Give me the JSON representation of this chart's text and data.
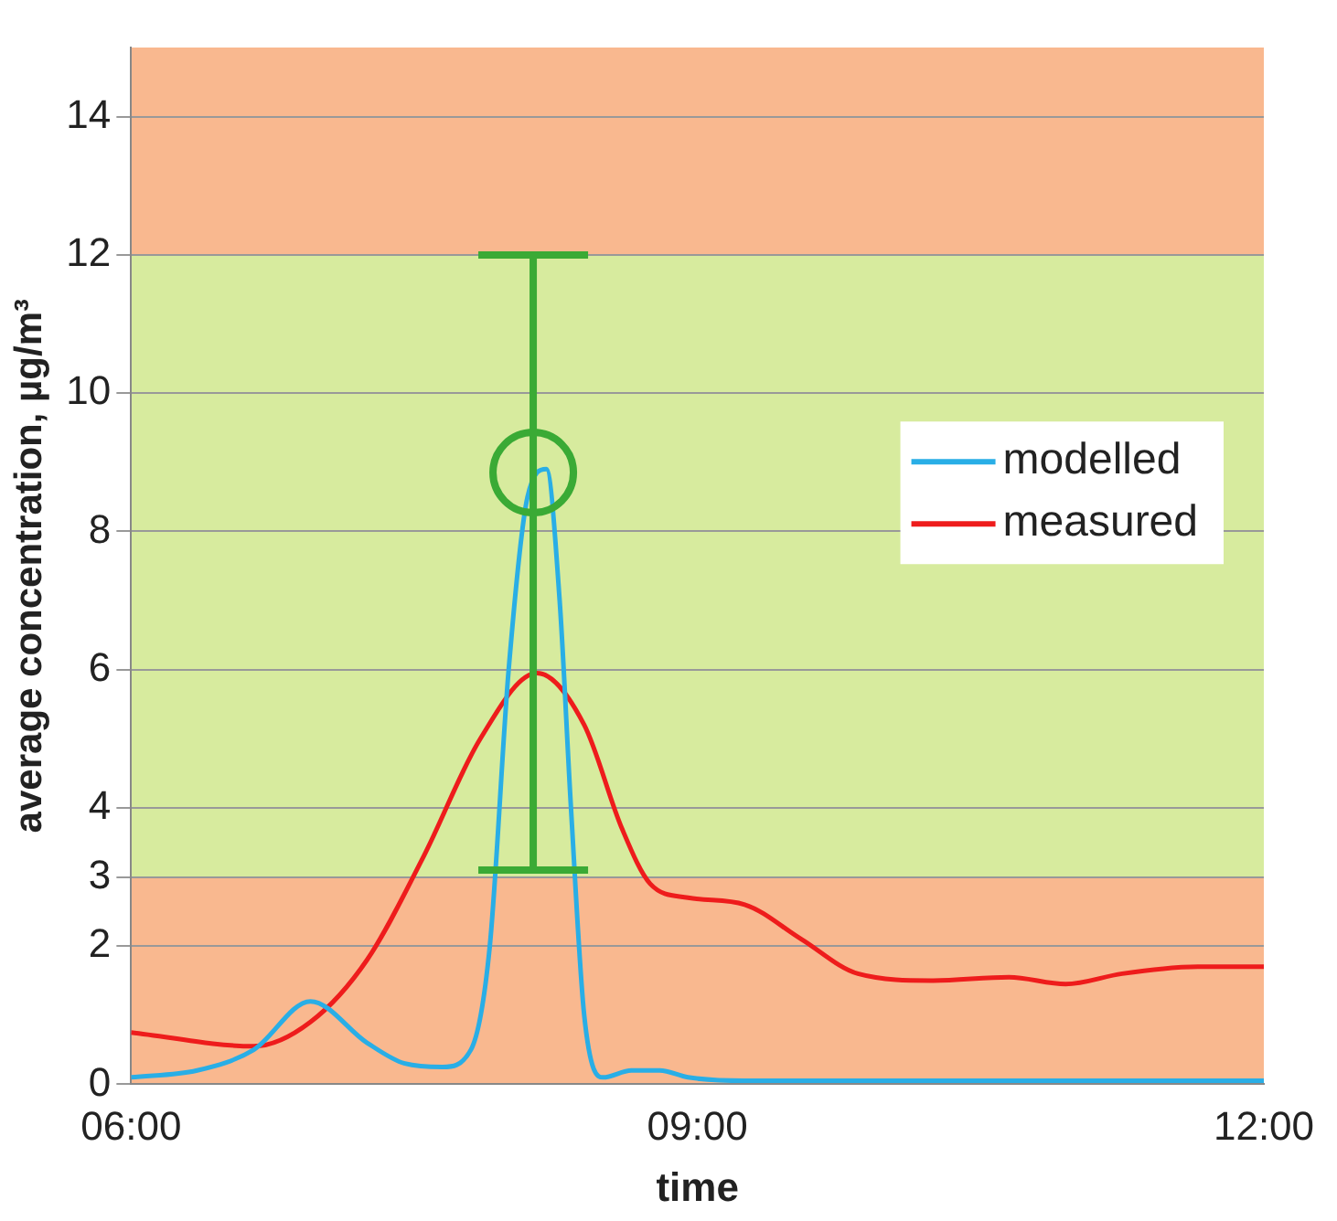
{
  "chart_data": {
    "type": "line",
    "xlabel": "time",
    "ylabel": "average concentration, µg/m³",
    "xlim": [
      6,
      12
    ],
    "xticks": [
      {
        "value": 6,
        "label": "06:00"
      },
      {
        "value": 9,
        "label": "09:00"
      },
      {
        "value": 12,
        "label": "12:00"
      }
    ],
    "ylim": [
      0,
      15
    ],
    "yticks": [
      0,
      2,
      3,
      4,
      6,
      8,
      10,
      12,
      14
    ],
    "grid": "y",
    "legend": "right",
    "marker": "none",
    "line_style": "solid",
    "bands": [
      {
        "axis": "y",
        "from": 0,
        "to": 3,
        "color": "#f9b88f"
      },
      {
        "axis": "y",
        "from": 3,
        "to": 12,
        "color": "#d7eb9e"
      },
      {
        "axis": "y",
        "from": 12,
        "to": 15,
        "color": "#f9b88f"
      }
    ],
    "series": [
      {
        "name": "modelled",
        "color": "#29aee6",
        "x": [
          6,
          6.35,
          6.65,
          6.95,
          7.25,
          7.45,
          7.65,
          7.8,
          7.9,
          8.0,
          8.1,
          8.2,
          8.27,
          8.33,
          8.4,
          8.5,
          8.65,
          8.8,
          8.95,
          9.25,
          10,
          11,
          12
        ],
        "values": [
          0.1,
          0.2,
          0.5,
          1.2,
          0.6,
          0.3,
          0.25,
          0.5,
          2,
          6,
          8.5,
          8.9,
          7,
          4,
          1,
          0.1,
          0.2,
          0.2,
          0.1,
          0.05,
          0.05,
          0.05,
          0.05
        ]
      },
      {
        "name": "measured",
        "color": "#ee1c1c",
        "x": [
          6,
          6.65,
          6.95,
          7.25,
          7.55,
          7.85,
          8.15,
          8.4,
          8.6,
          8.75,
          8.95,
          9.25,
          9.55,
          9.85,
          10.25,
          10.65,
          10.95,
          11.25,
          11.65,
          12
        ],
        "values": [
          0.75,
          0.55,
          0.9,
          1.8,
          3.3,
          5.0,
          5.95,
          5.2,
          3.7,
          2.9,
          2.7,
          2.6,
          2.1,
          1.6,
          1.5,
          1.55,
          1.45,
          1.6,
          1.7,
          1.7
        ]
      },
      {
        "type": "scatter",
        "color": "#3aaa35",
        "marker": "circle",
        "x": [
          8.13
        ],
        "values": [
          8.85
        ],
        "errors": [
          [
            3.1,
            12
          ]
        ]
      }
    ]
  }
}
